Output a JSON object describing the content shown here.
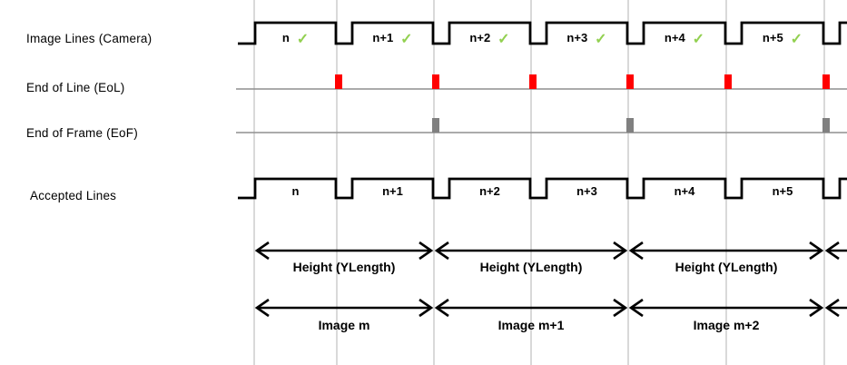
{
  "diagram_rows": [
    {
      "id": "camera",
      "label": "Image Lines (Camera)"
    },
    {
      "id": "eol",
      "label": "End of Line (EoL)"
    },
    {
      "id": "eof",
      "label": "End of Frame (EoF)"
    },
    {
      "id": "accepted",
      "label": "Accepted Lines"
    }
  ],
  "line_labels": [
    "n",
    "n+1",
    "n+2",
    "n+3",
    "n+4",
    "n+5"
  ],
  "camera_line_checked": [
    true,
    true,
    true,
    true,
    true,
    true
  ],
  "checkmark_glyph": "✓",
  "events": {
    "eol_at_boundaries": [
      1,
      2,
      3,
      4,
      5,
      6
    ],
    "eof_at_boundaries": [
      2,
      4,
      6
    ]
  },
  "measurements": {
    "height_labels": [
      "Height (YLength)",
      "Height (YLength)",
      "Height (YLength)"
    ],
    "image_labels": [
      "Image m",
      "Image m+1",
      "Image m+2"
    ],
    "has_partial_next_frame": true
  },
  "colors": {
    "waveform": "#000000",
    "gridline": "#b3b3b3",
    "baseline": "#8f8f8f",
    "eol_pulse": "#ff0000",
    "eof_pulse": "#808080",
    "checkmark": "#92d050",
    "label_text": "#000000"
  }
}
